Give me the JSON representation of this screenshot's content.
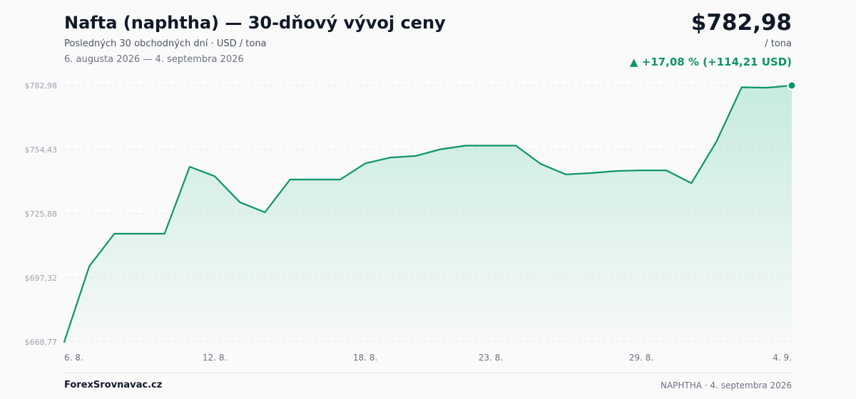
{
  "header": {
    "title": "Nafta (naphtha) — 30-dňový vývoj ceny",
    "subtitle": "Posledných 30 obchodných dní · USD / tona",
    "date_range": "6. augusta 2026 — 4. septembra 2026",
    "price": "$782,98",
    "unit": "/ tona",
    "change": "▲ +17,08 % (+114,21 USD)"
  },
  "footer": {
    "brand": "ForexSrovnavac.cz",
    "note": "NAPHTHA · 4. septembra 2026"
  },
  "colors": {
    "line": "#0e9467",
    "area": "#2fbf86",
    "grid": "#e5e7eb",
    "tick": "#9ca3af"
  },
  "chart_data": {
    "type": "area",
    "title": "Nafta (naphtha) — 30-dňový vývoj ceny",
    "xlabel": "",
    "ylabel": "",
    "y_ticks": [
      668.77,
      697.32,
      725.88,
      754.43,
      782.98
    ],
    "y_tick_labels": [
      "$668,77",
      "$697,32",
      "$725,88",
      "$754,43",
      "$782,98"
    ],
    "ylim": [
      668.77,
      782.98
    ],
    "x_ticks": [
      {
        "index": 0,
        "label": "6. 8."
      },
      {
        "index": 6,
        "label": "12. 8."
      },
      {
        "index": 12,
        "label": "18. 8."
      },
      {
        "index": 17,
        "label": "23. 8."
      },
      {
        "index": 23,
        "label": "29. 8."
      },
      {
        "index": 29,
        "label": "4. 9."
      }
    ],
    "grid": true,
    "legend": "none",
    "series": [
      {
        "values": [
          668.77,
          702.5,
          717.0,
          717.0,
          717.0,
          746.8,
          742.6,
          731.0,
          726.5,
          741.1,
          741.1,
          741.1,
          748.3,
          750.9,
          751.6,
          754.6,
          756.2,
          756.2,
          756.2,
          748.0,
          743.4,
          744.0,
          744.9,
          745.2,
          745.2,
          739.5,
          758.1,
          782.2,
          782.0,
          782.98
        ]
      }
    ]
  }
}
